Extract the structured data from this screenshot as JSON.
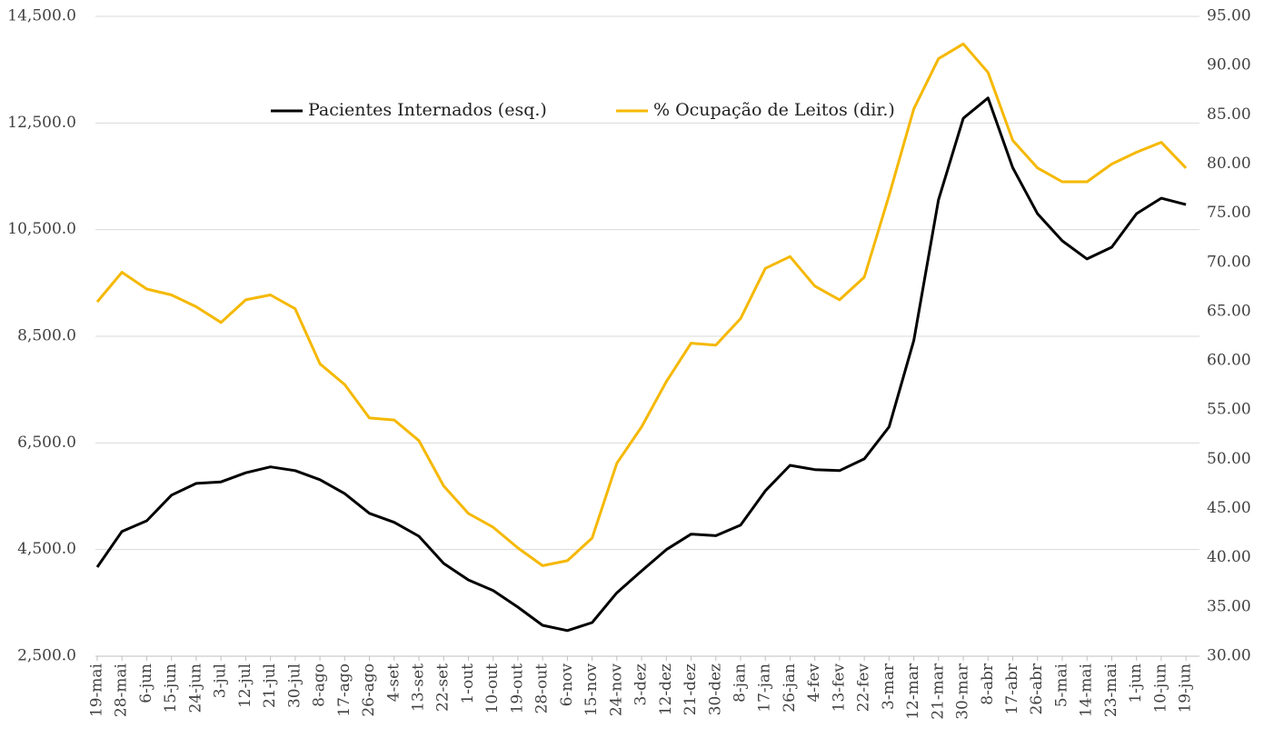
{
  "chart_data": {
    "type": "line",
    "categories": [
      "19-mai",
      "28-mai",
      "6-jun",
      "15-jun",
      "24-jun",
      "3-jul",
      "12-jul",
      "21-jul",
      "30-jul",
      "8-ago",
      "17-ago",
      "26-ago",
      "4-set",
      "13-set",
      "22-set",
      "1-out",
      "10-out",
      "19-out",
      "28-out",
      "6-nov",
      "15-nov",
      "24-nov",
      "3-dez",
      "12-dez",
      "21-dez",
      "30-dez",
      "8-jan",
      "17-jan",
      "26-jan",
      "4-fev",
      "13-fev",
      "22-fev",
      "3-mar",
      "12-mar",
      "21-mar",
      "30-mar",
      "8-abr",
      "17-abr",
      "26-abr",
      "5-mai",
      "14-mai",
      "23-mai",
      "1-jun",
      "10-jun",
      "19-jun"
    ],
    "series": [
      {
        "name": "Pacientes Internados (esq.)",
        "color": "#000000",
        "axis": "y",
        "values": [
          4170,
          4840,
          5040,
          5520,
          5740,
          5770,
          5940,
          6050,
          5980,
          5810,
          5550,
          5180,
          5010,
          4750,
          4240,
          3930,
          3730,
          3420,
          3080,
          2980,
          3130,
          3690,
          4100,
          4500,
          4790,
          4760,
          4960,
          5600,
          6080,
          6000,
          5980,
          6200,
          6800,
          8420,
          11060,
          12590,
          12970,
          11660,
          10800,
          10290,
          9950,
          10170,
          10800,
          11090,
          10970
        ]
      },
      {
        "name": "% Ocupação de Leitos (dir.)",
        "color": "#f5b800",
        "axis": "y2",
        "values": [
          66.0,
          69.0,
          67.3,
          66.7,
          65.5,
          63.9,
          66.2,
          66.7,
          65.3,
          59.7,
          57.6,
          54.2,
          54.0,
          51.9,
          47.3,
          44.5,
          43.1,
          41.0,
          39.2,
          39.7,
          42.0,
          49.6,
          53.3,
          57.9,
          61.8,
          61.6,
          64.3,
          69.4,
          70.6,
          67.6,
          66.2,
          68.5,
          76.8,
          85.6,
          90.7,
          92.2,
          89.3,
          82.4,
          79.6,
          78.2,
          78.2,
          80.0,
          81.2,
          82.2,
          79.6
        ]
      }
    ],
    "ylim": [
      2500,
      14500
    ],
    "yticks": [
      {
        "value": 2500,
        "label": "2,500.0"
      },
      {
        "value": 4500,
        "label": "4,500.0"
      },
      {
        "value": 6500,
        "label": "6,500.0"
      },
      {
        "value": 8500,
        "label": "8,500.0"
      },
      {
        "value": 10500,
        "label": "10,500.0"
      },
      {
        "value": 12500,
        "label": "12,500.0"
      },
      {
        "value": 14500,
        "label": "14,500.0"
      }
    ],
    "y2lim": [
      30,
      95
    ],
    "y2ticks": [
      {
        "value": 30,
        "label": "30.00"
      },
      {
        "value": 35,
        "label": "35.00"
      },
      {
        "value": 40,
        "label": "40.00"
      },
      {
        "value": 45,
        "label": "45.00"
      },
      {
        "value": 50,
        "label": "50.00"
      },
      {
        "value": 55,
        "label": "55.00"
      },
      {
        "value": 60,
        "label": "60.00"
      },
      {
        "value": 65,
        "label": "65.00"
      },
      {
        "value": 70,
        "label": "70.00"
      },
      {
        "value": 75,
        "label": "75.00"
      },
      {
        "value": 80,
        "label": "80.00"
      },
      {
        "value": 85,
        "label": "85.00"
      },
      {
        "value": 90,
        "label": "90.00"
      },
      {
        "value": 95,
        "label": "95.00"
      }
    ],
    "grid": true
  }
}
